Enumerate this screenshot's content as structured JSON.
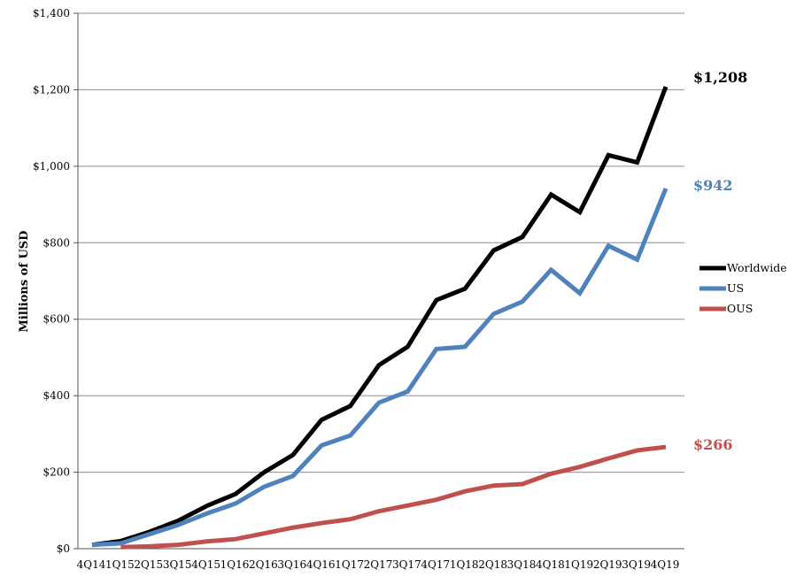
{
  "chart_data": {
    "type": "line",
    "categories": [
      "4Q14",
      "1Q15",
      "2Q15",
      "3Q15",
      "4Q15",
      "1Q16",
      "2Q16",
      "3Q16",
      "4Q16",
      "1Q17",
      "2Q17",
      "3Q17",
      "4Q17",
      "1Q18",
      "2Q18",
      "3Q18",
      "4Q18",
      "1Q19",
      "2Q19",
      "3Q19",
      "4Q19"
    ],
    "series": [
      {
        "name": "Worldwide",
        "color": "#000000",
        "values": [
          10,
          20,
          44,
          73,
          112,
          143,
          200,
          245,
          337,
          373,
          480,
          528,
          650,
          680,
          780,
          815,
          926,
          880,
          1029,
          1010,
          1208
        ]
      },
      {
        "name": "US",
        "color": "#4F81BD",
        "values": [
          10,
          14,
          38,
          62,
          92,
          118,
          162,
          190,
          270,
          296,
          382,
          411,
          522,
          528,
          614,
          646,
          729,
          668,
          792,
          756,
          942
        ]
      },
      {
        "name": "OUS",
        "color": "#C0504D",
        "values": [
          null,
          4,
          6,
          10,
          19,
          25,
          40,
          55,
          67,
          77,
          98,
          113,
          128,
          150,
          165,
          169,
          196,
          214,
          236,
          257,
          266
        ]
      }
    ],
    "end_labels": [
      {
        "series": "Worldwide",
        "text": "$1,208",
        "color": "#000000"
      },
      {
        "series": "US",
        "text": "$942",
        "color": "#4F81BD"
      },
      {
        "series": "OUS",
        "text": "$266",
        "color": "#C0504D"
      }
    ],
    "y_ticks": [
      0,
      200,
      400,
      600,
      800,
      1000,
      1200,
      1400
    ],
    "y_tick_labels": [
      "$0",
      "$200",
      "$400",
      "$600",
      "$800",
      "$1,000",
      "$1,200",
      "$1,400"
    ],
    "ylabel": "Millions of USD",
    "xlabel": "",
    "title": "",
    "ylim": [
      0,
      1400
    ],
    "grid": true,
    "legend_position": "right"
  }
}
